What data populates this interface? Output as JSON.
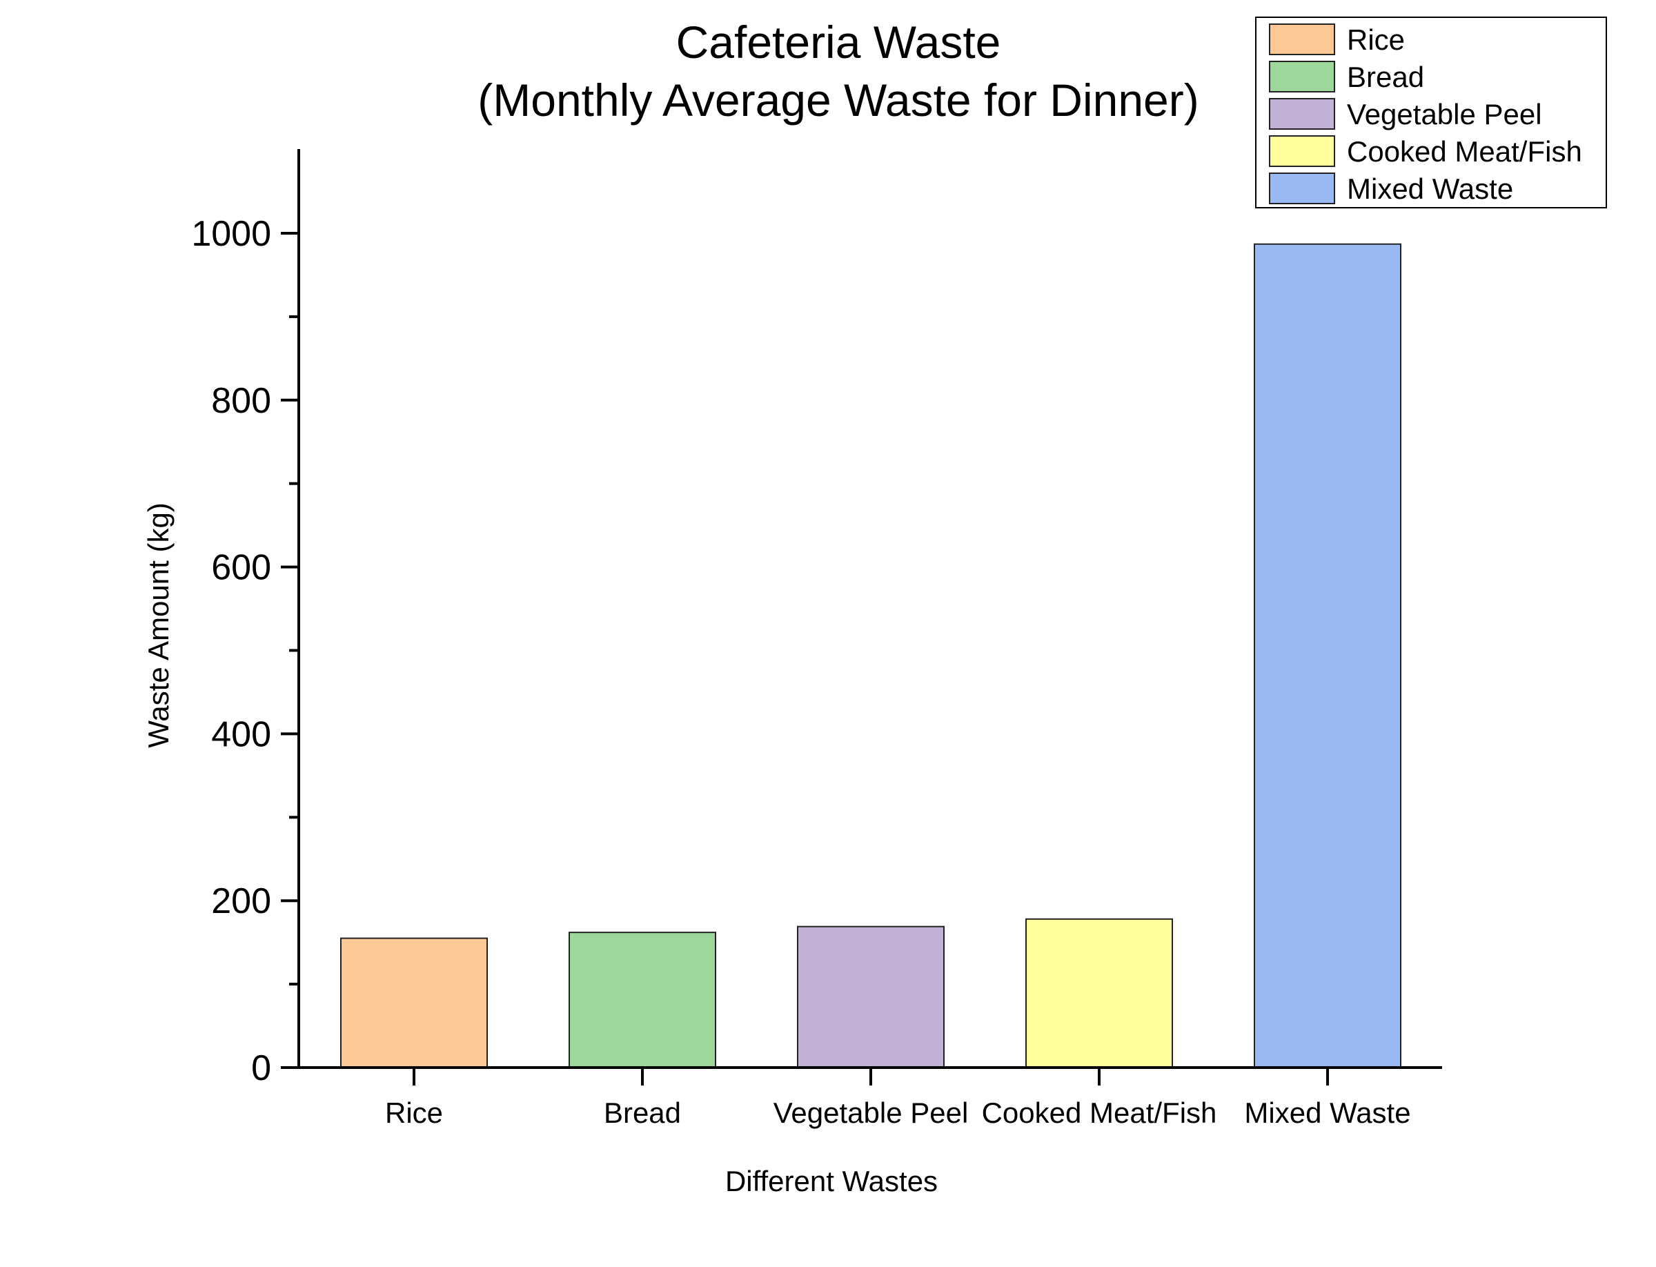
{
  "chart_data": {
    "type": "bar",
    "title": "Cafeteria Waste",
    "subtitle": "(Monthly Average Waste for Dinner)",
    "xlabel": "Different Wastes",
    "ylabel": "Waste Amount (kg)",
    "categories": [
      "Rice",
      "Bread",
      "Vegetable Peel",
      "Cooked Meat/Fish",
      "Mixed Waste"
    ],
    "values": [
      155,
      162,
      169,
      178,
      987
    ],
    "colors": [
      "#FCC996",
      "#9ED79C",
      "#C2B2D6",
      "#FFFF9E",
      "#9BBAF4"
    ],
    "ylim": [
      0,
      1100
    ],
    "yticks": [
      0,
      200,
      400,
      600,
      800,
      1000
    ],
    "grid": false,
    "legend": {
      "position": "top-right",
      "entries": [
        "Rice",
        "Bread",
        "Vegetable Peel",
        "Cooked Meat/Fish",
        "Mixed Waste"
      ]
    }
  }
}
